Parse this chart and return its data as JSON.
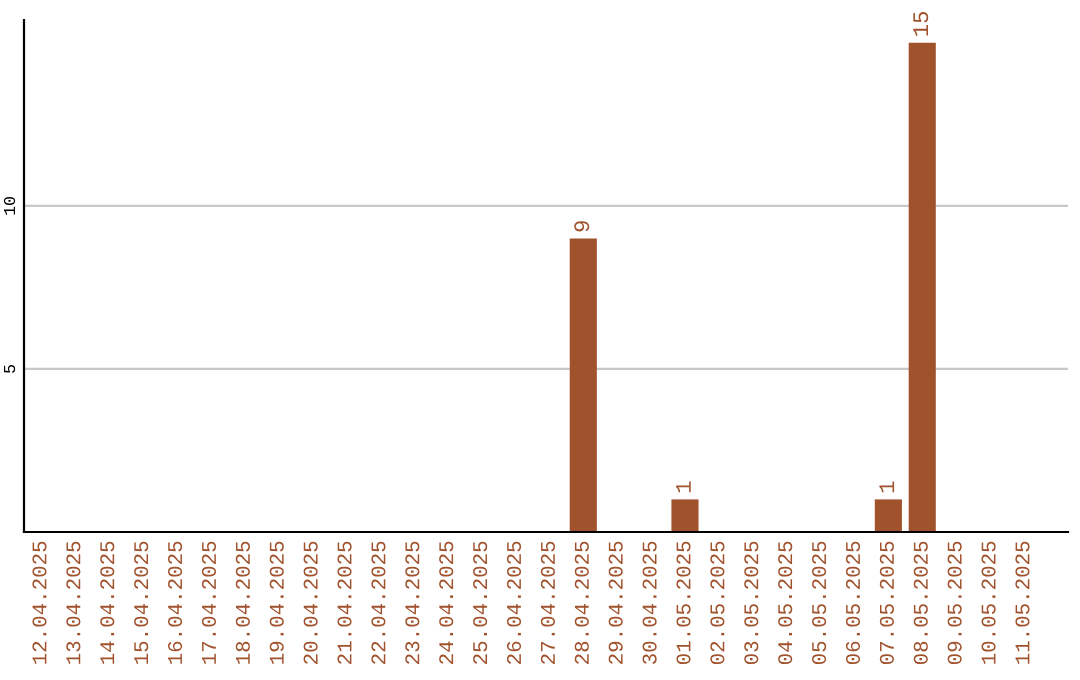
{
  "chart_data": {
    "type": "bar",
    "categories": [
      "12.04.2025",
      "13.04.2025",
      "14.04.2025",
      "15.04.2025",
      "16.04.2025",
      "17.04.2025",
      "18.04.2025",
      "19.04.2025",
      "20.04.2025",
      "21.04.2025",
      "22.04.2025",
      "23.04.2025",
      "24.04.2025",
      "25.04.2025",
      "26.04.2025",
      "27.04.2025",
      "28.04.2025",
      "29.04.2025",
      "30.04.2025",
      "01.05.2025",
      "02.05.2025",
      "03.05.2025",
      "04.05.2025",
      "05.05.2025",
      "06.05.2025",
      "07.05.2025",
      "08.05.2025",
      "09.05.2025",
      "10.05.2025",
      "11.05.2025"
    ],
    "values": [
      0,
      0,
      0,
      0,
      0,
      0,
      0,
      0,
      0,
      0,
      0,
      0,
      0,
      0,
      0,
      0,
      9,
      0,
      0,
      1,
      0,
      0,
      0,
      0,
      0,
      1,
      15,
      0,
      0,
      0
    ],
    "value_labels": [
      null,
      null,
      null,
      null,
      null,
      null,
      null,
      null,
      null,
      null,
      null,
      null,
      null,
      null,
      null,
      null,
      "9",
      null,
      null,
      "1",
      null,
      null,
      null,
      null,
      null,
      "1",
      "15",
      null,
      null,
      null
    ],
    "color": "#a0522d",
    "ylim": [
      0,
      15.7
    ],
    "yticks": [
      5,
      10
    ],
    "grid": "y"
  }
}
